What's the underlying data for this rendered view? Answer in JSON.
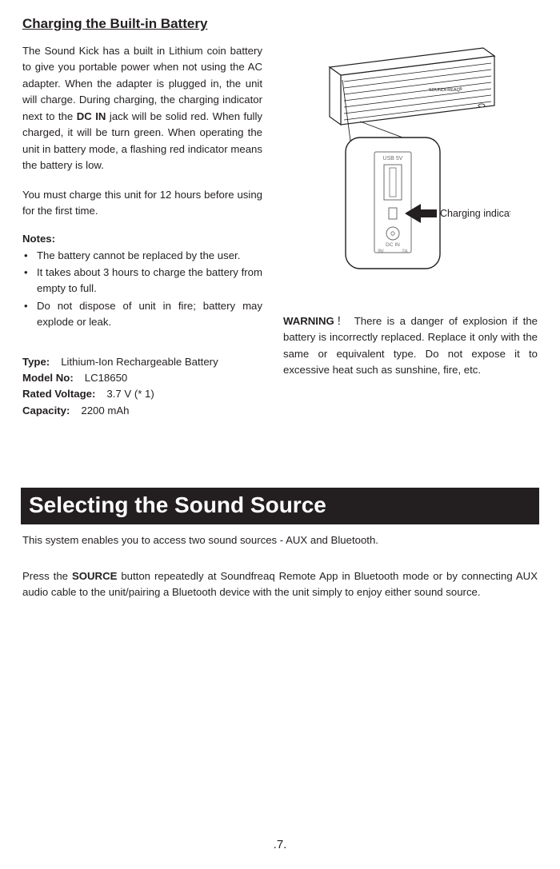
{
  "title": "Charging the Built-in Battery",
  "intro_html": "The Sound Kick has a built in Lithium coin battery to give you portable power when not using the AC adapter. When the adapter is plugged in, the unit will charge. During charging, the charging indicator next to the <b>DC IN</b> jack will be solid red. When fully charged, it will be turn green. When operating the unit in battery mode, a flashing red indicator means the battery is low.",
  "charge_note": "You must charge this unit for 12 hours before using for the first time.",
  "notes_title": "Notes:",
  "notes": [
    "The battery cannot be replaced by the user.",
    "It takes about 3 hours to charge the battery from empty to full.",
    "Do not dispose of unit in fire; battery may explode or leak."
  ],
  "specs": {
    "type_label": "Type:",
    "type_value": "Lithium-Ion Rechargeable Battery",
    "model_label": "Model No:",
    "model_value": "LC18650",
    "voltage_label": "Rated Voltage:",
    "voltage_value": "3.7 V (* 1)",
    "capacity_label": "Capacity:",
    "capacity_value": "2200 mAh"
  },
  "diagram": {
    "usb_label": "USB 5V",
    "dc_label": "DC IN",
    "dc_left": "9V",
    "dc_right": "2A",
    "indicator_label": "Charging indicator",
    "brand": "SOUNDFREAQ"
  },
  "warning_html": "<b>WARNING</b>！ There is a danger of explosion if the battery is incorrectly replaced. Replace it only with the same or equivalent type. Do not expose it to excessive heat such as sunshine, fire, etc.",
  "section2_title": "Selecting the Sound Source",
  "section2_p1": "This system enables you to access two sound sources - AUX and Bluetooth.",
  "section2_p2_html": "Press the <b>SOURCE</b> button repeatedly at Soundfreaq Remote App in Bluetooth mode or by connecting AUX audio cable to the unit/pairing a Bluetooth device with the unit simply to enjoy either sound source.",
  "page_number": ".7.",
  "colors": {
    "text": "#231f20",
    "bg": "#ffffff",
    "black_bar": "#231f20",
    "diagram_stroke": "#231f20",
    "diagram_light": "#6d6e71"
  }
}
